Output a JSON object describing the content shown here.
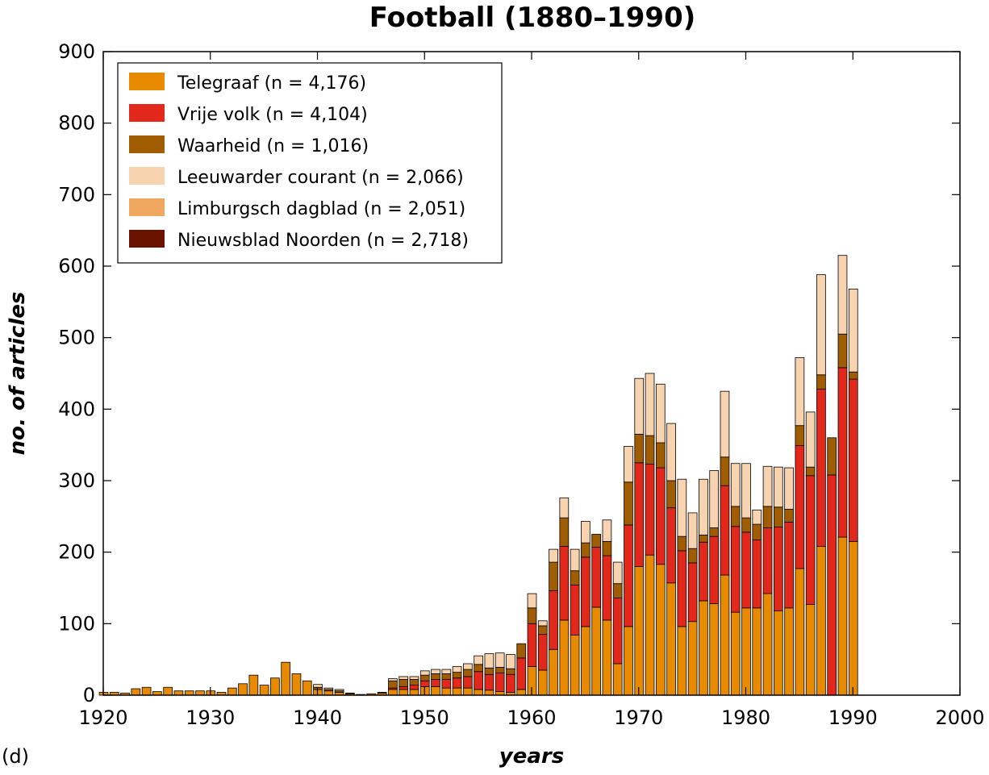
{
  "chart_data": {
    "type": "bar",
    "stacked": true,
    "title": "Football (1880–1990)",
    "xlabel": "years",
    "ylabel": "no. of articles",
    "panel_label": "(d)",
    "xlim": [
      1920,
      2000
    ],
    "ylim": [
      0,
      900
    ],
    "xticks": [
      1920,
      1930,
      1940,
      1950,
      1960,
      1970,
      1980,
      1990,
      2000
    ],
    "yticks": [
      0,
      100,
      200,
      300,
      400,
      500,
      600,
      700,
      800,
      900
    ],
    "grid": false,
    "legend_position": "top-left",
    "x": [
      1920,
      1921,
      1922,
      1923,
      1924,
      1925,
      1926,
      1927,
      1928,
      1929,
      1930,
      1931,
      1932,
      1933,
      1934,
      1935,
      1936,
      1937,
      1938,
      1939,
      1940,
      1941,
      1942,
      1943,
      1944,
      1945,
      1946,
      1947,
      1948,
      1949,
      1950,
      1951,
      1952,
      1953,
      1954,
      1955,
      1956,
      1957,
      1958,
      1959,
      1960,
      1961,
      1962,
      1963,
      1964,
      1965,
      1966,
      1967,
      1968,
      1969,
      1970,
      1971,
      1972,
      1973,
      1974,
      1975,
      1976,
      1977,
      1978,
      1979,
      1980,
      1981,
      1982,
      1983,
      1984,
      1985,
      1986,
      1987,
      1988,
      1989,
      1990
    ],
    "series": [
      {
        "name": "Telegraaf (n = 4,176)",
        "color": "#E88A00",
        "values": [
          4,
          4,
          3,
          9,
          11,
          5,
          11,
          6,
          6,
          6,
          6,
          4,
          10,
          16,
          28,
          14,
          24,
          46,
          30,
          20,
          8,
          6,
          4,
          2,
          1,
          2,
          3,
          8,
          8,
          8,
          12,
          12,
          10,
          10,
          10,
          8,
          7,
          5,
          4,
          8,
          40,
          35,
          64,
          105,
          84,
          96,
          123,
          105,
          44,
          96,
          180,
          196,
          183,
          157,
          96,
          103,
          132,
          128,
          168,
          116,
          122,
          122,
          142,
          118,
          122,
          177,
          127,
          208,
          0,
          221,
          215
        ]
      },
      {
        "name": "Vrije volk (n = 4,104)",
        "color": "#E2281A",
        "values": [
          0,
          0,
          0,
          0,
          0,
          0,
          0,
          0,
          0,
          0,
          0,
          0,
          0,
          0,
          0,
          0,
          0,
          0,
          0,
          0,
          0,
          0,
          0,
          0,
          0,
          0,
          0,
          2,
          4,
          6,
          8,
          10,
          12,
          14,
          16,
          25,
          22,
          26,
          25,
          44,
          60,
          50,
          82,
          103,
          70,
          97,
          84,
          90,
          92,
          142,
          145,
          127,
          135,
          105,
          106,
          82,
          82,
          94,
          125,
          120,
          106,
          95,
          92,
          117,
          120,
          172,
          180,
          220,
          308,
          237,
          227
        ]
      },
      {
        "name": "Waarheid (n = 1,016)",
        "color": "#A05C00",
        "values": [
          0,
          0,
          0,
          0,
          0,
          0,
          0,
          0,
          0,
          0,
          0,
          0,
          0,
          0,
          0,
          0,
          0,
          0,
          0,
          0,
          3,
          2,
          2,
          1,
          0,
          0,
          1,
          10,
          10,
          8,
          8,
          8,
          8,
          8,
          10,
          10,
          9,
          8,
          8,
          20,
          22,
          12,
          40,
          40,
          20,
          20,
          18,
          20,
          20,
          60,
          40,
          40,
          35,
          38,
          20,
          20,
          10,
          12,
          40,
          28,
          20,
          22,
          30,
          28,
          18,
          28,
          12,
          20,
          52,
          47,
          10
        ]
      },
      {
        "name": "Leeuwarder courant (n = 2,066)",
        "color": "#F8D3B0",
        "values": [
          0,
          0,
          0,
          0,
          0,
          0,
          0,
          0,
          0,
          0,
          0,
          0,
          0,
          0,
          0,
          0,
          0,
          0,
          0,
          0,
          4,
          2,
          2,
          0,
          0,
          0,
          0,
          3,
          4,
          4,
          6,
          6,
          6,
          8,
          8,
          12,
          20,
          20,
          20,
          0,
          20,
          7,
          18,
          28,
          30,
          30,
          0,
          30,
          30,
          50,
          78,
          87,
          82,
          80,
          80,
          50,
          78,
          80,
          92,
          60,
          76,
          20,
          56,
          56,
          58,
          95,
          77,
          140,
          0,
          110,
          116
        ]
      },
      {
        "name": "Limburgsch dagblad (n = 2,051)",
        "color": "#F0A860",
        "values": [
          0,
          0,
          0,
          0,
          0,
          0,
          0,
          0,
          0,
          0,
          0,
          0,
          0,
          0,
          0,
          0,
          0,
          0,
          0,
          0,
          0,
          0,
          0,
          0,
          0,
          0,
          0,
          0,
          0,
          0,
          0,
          0,
          0,
          0,
          0,
          0,
          0,
          0,
          0,
          0,
          0,
          0,
          0,
          0,
          0,
          0,
          0,
          0,
          0,
          0,
          0,
          0,
          0,
          0,
          0,
          0,
          0,
          0,
          0,
          0,
          0,
          0,
          0,
          0,
          0,
          0,
          0,
          0,
          0,
          0,
          0
        ]
      },
      {
        "name": "Nieuwsblad Noorden (n = 2,718)",
        "color": "#6A1200",
        "values": [
          0,
          0,
          0,
          0,
          0,
          0,
          0,
          0,
          0,
          0,
          0,
          0,
          0,
          0,
          0,
          0,
          0,
          0,
          0,
          0,
          0,
          0,
          0,
          0,
          0,
          0,
          0,
          0,
          0,
          0,
          0,
          0,
          0,
          0,
          0,
          0,
          0,
          0,
          0,
          0,
          0,
          0,
          0,
          0,
          0,
          0,
          0,
          0,
          0,
          0,
          0,
          0,
          0,
          0,
          0,
          0,
          0,
          0,
          0,
          0,
          0,
          0,
          0,
          0,
          0,
          0,
          0,
          0,
          0,
          0,
          0
        ]
      }
    ]
  }
}
